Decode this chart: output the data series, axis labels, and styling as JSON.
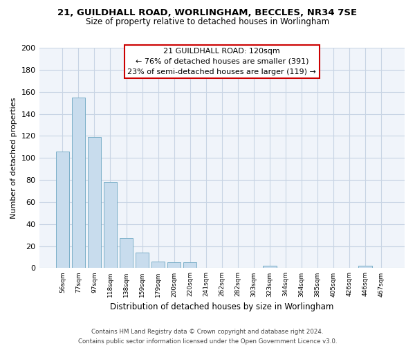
{
  "title1": "21, GUILDHALL ROAD, WORLINGHAM, BECCLES, NR34 7SE",
  "title2": "Size of property relative to detached houses in Worlingham",
  "xlabel": "Distribution of detached houses by size in Worlingham",
  "ylabel": "Number of detached properties",
  "bar_labels": [
    "56sqm",
    "77sqm",
    "97sqm",
    "118sqm",
    "138sqm",
    "159sqm",
    "179sqm",
    "200sqm",
    "220sqm",
    "241sqm",
    "262sqm",
    "282sqm",
    "303sqm",
    "323sqm",
    "344sqm",
    "364sqm",
    "385sqm",
    "405sqm",
    "426sqm",
    "446sqm",
    "467sqm"
  ],
  "bar_values": [
    106,
    155,
    119,
    78,
    27,
    14,
    6,
    5,
    5,
    0,
    0,
    0,
    0,
    2,
    0,
    0,
    0,
    0,
    0,
    2,
    0
  ],
  "bar_color": "#c8dced",
  "bar_edge_color": "#7aafc8",
  "ylim": [
    0,
    200
  ],
  "yticks": [
    0,
    20,
    40,
    60,
    80,
    100,
    120,
    140,
    160,
    180,
    200
  ],
  "annotation_line1": "21 GUILDHALL ROAD: 120sqm",
  "annotation_line2": "← 76% of detached houses are smaller (391)",
  "annotation_line3": "23% of semi-detached houses are larger (119) →",
  "box_edge_color": "#cc0000",
  "footer1": "Contains HM Land Registry data © Crown copyright and database right 2024.",
  "footer2": "Contains public sector information licensed under the Open Government Licence v3.0.",
  "background_color": "#f0f4fa",
  "grid_color": "#c8d4e4"
}
